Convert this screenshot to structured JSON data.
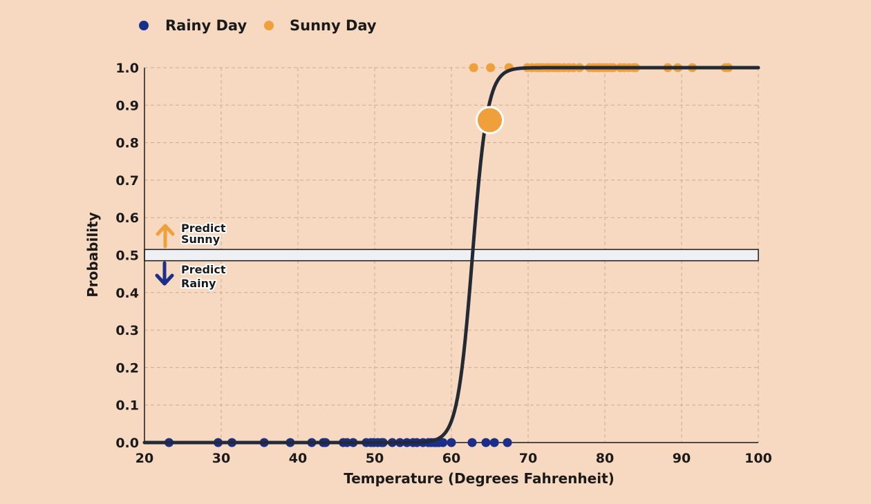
{
  "legend": {
    "rainy_label": "Rainy Day",
    "sunny_label": "Sunny Day"
  },
  "annotations": {
    "predict_sunny_line1": "Predict",
    "predict_sunny_line2": "Sunny",
    "predict_rainy_line1": "Predict",
    "predict_rainy_line2": "Rainy"
  },
  "chart_data": {
    "type": "scatter",
    "xlabel": "Temperature (Degrees Fahrenheit)",
    "ylabel": "Probability",
    "xlim": [
      20,
      100
    ],
    "ylim": [
      0,
      1
    ],
    "x_ticks": [
      "20",
      "30",
      "40",
      "50",
      "60",
      "70",
      "80",
      "90",
      "100"
    ],
    "y_ticks": [
      "0.0",
      "0.1",
      "0.2",
      "0.3",
      "0.4",
      "0.5",
      "0.6",
      "0.7",
      "0.8",
      "0.9",
      "1.0"
    ],
    "grid": true,
    "legend_position": "top-left",
    "colors": {
      "rainy": "#1a2e8a",
      "sunny": "#f0a03a",
      "curve": "#232a36",
      "threshold_band": "#eef0f4"
    },
    "series": [
      {
        "name": "Rainy Day",
        "y": 0,
        "x": [
          23.2,
          29.6,
          31.4,
          35.6,
          39.0,
          41.8,
          43.3,
          43.6,
          45.9,
          46.4,
          47.2,
          48.9,
          49.5,
          49.9,
          50.4,
          50.9,
          51.1,
          52.3,
          53.3,
          54.2,
          55.0,
          55.5,
          56.3,
          57.0,
          57.4,
          57.8,
          58.1,
          58.4,
          58.9,
          60.0,
          62.7,
          64.5,
          65.6,
          67.3
        ]
      },
      {
        "name": "Sunny Day",
        "y": 1,
        "x": [
          62.9,
          65.1,
          67.5,
          69.9,
          70.5,
          71.1,
          71.5,
          71.9,
          72.4,
          72.8,
          73.3,
          73.7,
          74.1,
          74.7,
          75.3,
          75.9,
          76.7,
          78.0,
          78.5,
          78.9,
          79.3,
          79.8,
          80.2,
          80.7,
          81.1,
          82.0,
          82.5,
          83.1,
          83.7,
          84.0,
          88.2,
          89.5,
          91.4,
          95.7,
          96.1
        ]
      },
      {
        "name": "Logistic curve",
        "function": "1/(1+exp(-k*(x-x0)))",
        "k": 1.02,
        "x0": 62.75
      }
    ],
    "highlighted_point": {
      "x": 65,
      "y": 0.86
    },
    "threshold": {
      "y0": 0.485,
      "y1": 0.515,
      "center": 0.5
    }
  }
}
